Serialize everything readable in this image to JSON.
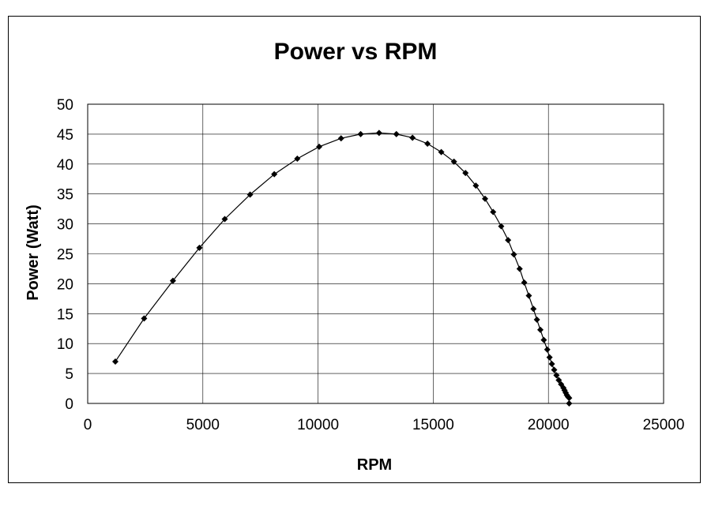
{
  "chart_data": {
    "type": "scatter",
    "title": "Power vs RPM",
    "xlabel": "RPM",
    "ylabel": "Power (Watt)",
    "xlim": [
      0,
      25000
    ],
    "ylim": [
      0,
      50
    ],
    "x_ticks": [
      "0",
      "5000",
      "10000",
      "15000",
      "20000",
      "25000"
    ],
    "y_ticks": [
      "0",
      "5",
      "10",
      "15",
      "20",
      "25",
      "30",
      "35",
      "40",
      "45",
      "50"
    ],
    "grid": true,
    "legend": "none",
    "line_color": "#000000",
    "marker": "diamond",
    "series": [
      {
        "x": [
          1200,
          2450,
          3700,
          4850,
          5950,
          7050,
          8100,
          9100,
          10050,
          11000,
          11850,
          12650,
          13400,
          14100,
          14750,
          15350,
          15900,
          16400,
          16850,
          17250,
          17600,
          17950,
          18250,
          18500,
          18750,
          18950,
          19150,
          19350,
          19500,
          19650,
          19800,
          19950,
          20050,
          20150,
          20250,
          20350,
          20450,
          20550,
          20650,
          20700,
          20750,
          20800,
          20850,
          20900,
          20900
        ],
        "y": [
          7.0,
          14.2,
          20.5,
          26.0,
          30.8,
          34.9,
          38.3,
          40.9,
          42.9,
          44.3,
          45.0,
          45.2,
          45.0,
          44.4,
          43.4,
          42.0,
          40.4,
          38.5,
          36.4,
          34.2,
          32.0,
          29.6,
          27.3,
          24.9,
          22.5,
          20.2,
          18.0,
          15.8,
          14.0,
          12.3,
          10.6,
          9.0,
          7.7,
          6.6,
          5.6,
          4.7,
          3.9,
          3.2,
          2.6,
          2.2,
          1.8,
          1.4,
          1.1,
          0.9,
          0.0
        ]
      }
    ]
  }
}
